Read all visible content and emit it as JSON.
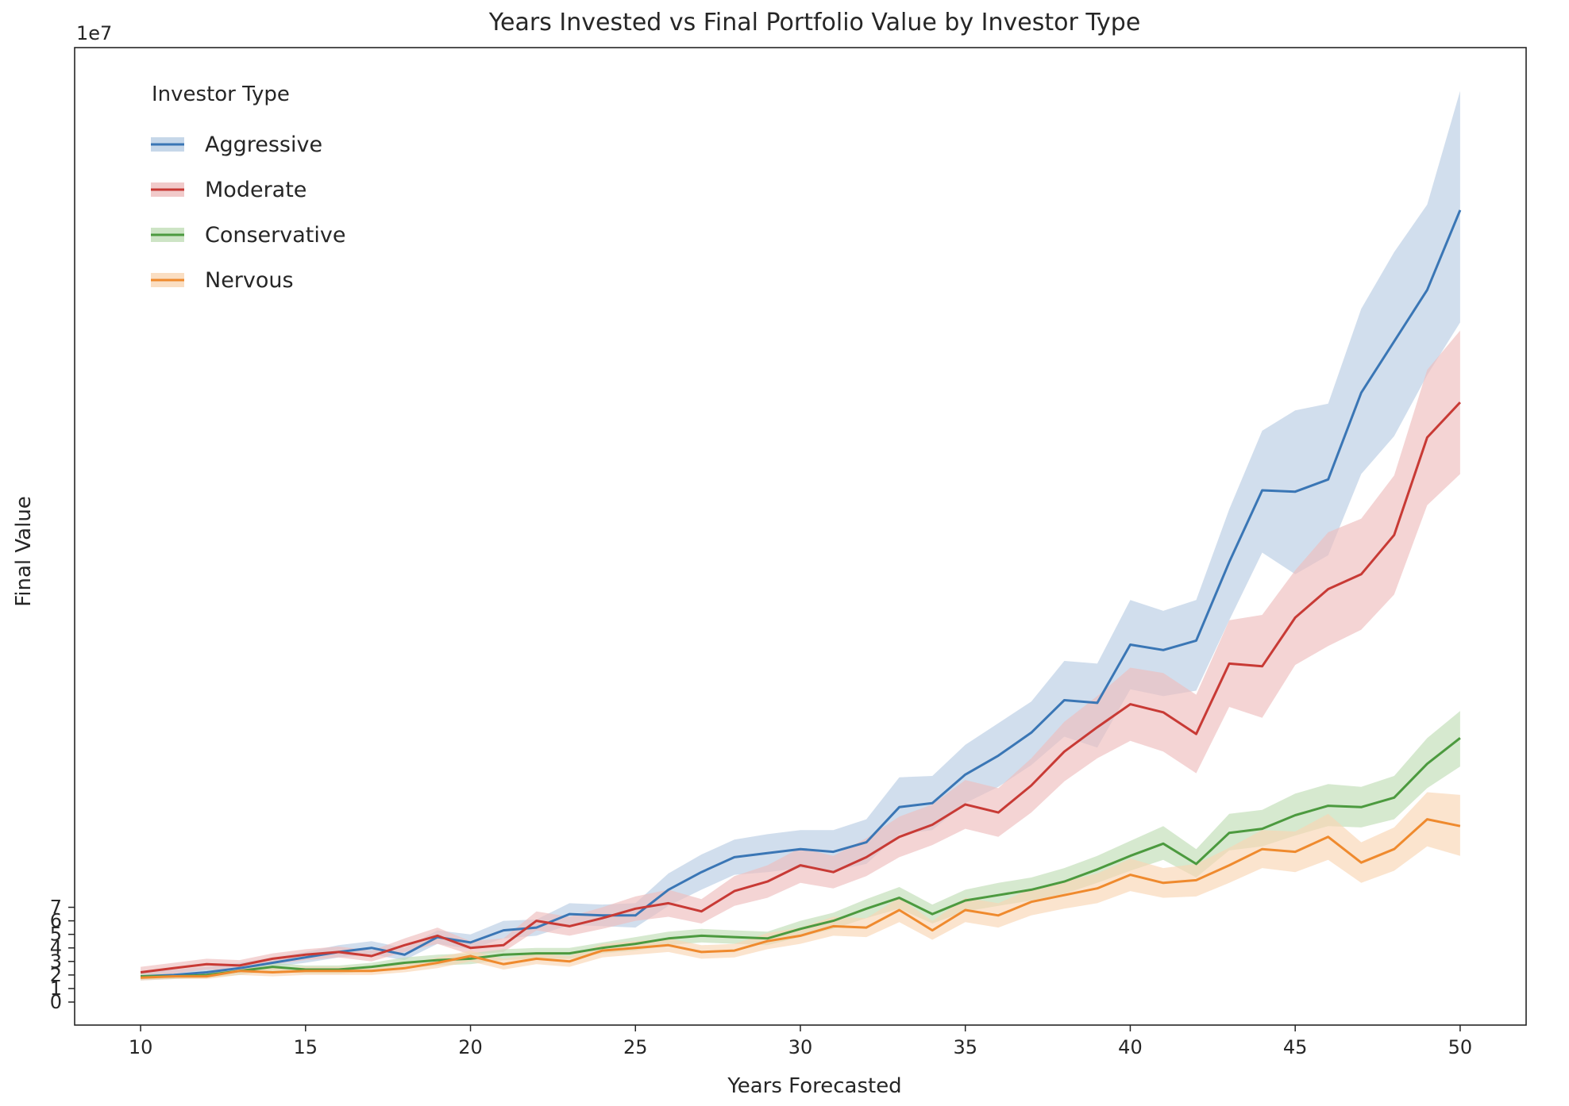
{
  "chart_data": {
    "type": "line",
    "title": "Years Invested vs Final Portfolio Value by Investor Type",
    "xlabel": "Years Forecasted",
    "ylabel": "Final Value",
    "y_offset_label": "1e7",
    "y_multiplier": 10000000,
    "xlim": [
      8,
      52
    ],
    "ylim": [
      -1.7,
      70.5
    ],
    "x_ticks": [
      10,
      15,
      20,
      25,
      30,
      35,
      40,
      45,
      50
    ],
    "y_ticks": [
      0,
      1,
      2,
      3,
      4,
      5,
      6,
      7
    ],
    "grid": false,
    "legend": {
      "title": "Investor Type",
      "placement": "top-left"
    },
    "x": [
      10,
      11,
      12,
      13,
      14,
      15,
      16,
      17,
      18,
      19,
      20,
      21,
      22,
      23,
      24,
      25,
      26,
      27,
      28,
      29,
      30,
      31,
      32,
      33,
      34,
      35,
      36,
      37,
      38,
      39,
      40,
      41,
      42,
      43,
      44,
      45,
      46,
      47,
      48,
      49,
      50
    ],
    "series": [
      {
        "name": "Aggressive",
        "color": "#3a76b5",
        "band_color": "#b8cde4",
        "values": [
          1.9,
          2.0,
          2.2,
          2.5,
          2.9,
          3.3,
          3.7,
          4.0,
          3.5,
          4.8,
          4.4,
          5.3,
          5.5,
          6.5,
          6.4,
          6.4,
          8.3,
          9.6,
          10.7,
          11.0,
          11.3,
          11.1,
          11.8,
          14.4,
          14.7,
          16.8,
          18.2,
          19.9,
          22.3,
          22.1,
          26.4,
          26.0,
          26.7,
          32.5,
          37.8,
          37.7,
          38.6,
          45.0,
          48.8,
          52.6,
          58.5
        ],
        "lower": [
          1.6,
          1.7,
          1.9,
          2.2,
          2.6,
          2.9,
          3.3,
          3.5,
          3.1,
          4.3,
          3.9,
          4.7,
          4.9,
          5.7,
          5.6,
          5.5,
          7.1,
          8.3,
          9.4,
          9.6,
          9.9,
          9.7,
          10.2,
          12.4,
          12.7,
          14.7,
          15.9,
          17.5,
          19.6,
          18.8,
          23.1,
          22.6,
          23.0,
          28.2,
          33.2,
          31.6,
          33.0,
          39.0,
          41.8,
          46.3,
          50.2
        ],
        "upper": [
          2.3,
          2.4,
          2.6,
          2.9,
          3.3,
          3.7,
          4.2,
          4.5,
          4.0,
          5.3,
          5.0,
          6.0,
          6.1,
          7.3,
          7.2,
          7.3,
          9.5,
          10.9,
          12.0,
          12.4,
          12.7,
          12.7,
          13.5,
          16.6,
          16.7,
          19.0,
          20.6,
          22.2,
          25.2,
          25.0,
          29.7,
          28.9,
          29.7,
          36.4,
          42.2,
          43.7,
          44.2,
          51.2,
          55.4,
          58.9,
          67.3
        ]
      },
      {
        "name": "Moderate",
        "color": "#c83a35",
        "band_color": "#eebdbd",
        "values": [
          2.2,
          2.5,
          2.8,
          2.7,
          3.2,
          3.5,
          3.7,
          3.4,
          4.2,
          4.9,
          4.0,
          4.2,
          6.0,
          5.6,
          6.2,
          6.9,
          7.3,
          6.7,
          8.2,
          8.9,
          10.1,
          9.6,
          10.7,
          12.2,
          13.1,
          14.6,
          14.0,
          16.0,
          18.5,
          20.3,
          22.0,
          21.4,
          19.8,
          25.0,
          24.8,
          28.4,
          30.5,
          31.6,
          34.5,
          41.7,
          44.3
        ],
        "lower": [
          1.8,
          2.1,
          2.4,
          2.3,
          2.8,
          3.1,
          3.3,
          3.0,
          3.7,
          4.3,
          3.5,
          3.7,
          5.3,
          4.9,
          5.4,
          6.0,
          6.3,
          5.8,
          7.1,
          7.7,
          8.8,
          8.4,
          9.3,
          10.7,
          11.6,
          12.8,
          12.2,
          14.0,
          16.3,
          18.0,
          19.3,
          18.5,
          16.9,
          21.8,
          21.0,
          24.9,
          26.3,
          27.5,
          30.1,
          36.7,
          39.0
        ],
        "upper": [
          2.6,
          2.9,
          3.2,
          3.1,
          3.6,
          3.9,
          4.1,
          3.8,
          4.7,
          5.5,
          4.5,
          4.7,
          6.7,
          6.3,
          7.0,
          7.8,
          8.3,
          7.6,
          9.3,
          10.1,
          11.4,
          10.8,
          12.1,
          13.7,
          14.6,
          16.4,
          15.8,
          18.0,
          20.7,
          22.6,
          24.7,
          24.3,
          22.7,
          28.2,
          28.6,
          31.9,
          34.7,
          35.7,
          38.9,
          46.7,
          49.6
        ]
      },
      {
        "name": "Conservative",
        "color": "#4c9a3f",
        "band_color": "#c0ddb6",
        "values": [
          1.9,
          1.9,
          2.0,
          2.3,
          2.6,
          2.4,
          2.4,
          2.6,
          2.9,
          3.1,
          3.2,
          3.5,
          3.6,
          3.6,
          4.0,
          4.3,
          4.7,
          4.9,
          4.8,
          4.7,
          5.4,
          6.0,
          6.9,
          7.7,
          6.5,
          7.5,
          7.9,
          8.3,
          8.9,
          9.8,
          10.8,
          11.7,
          10.2,
          12.5,
          12.8,
          13.8,
          14.5,
          14.4,
          15.1,
          17.6,
          19.5
        ],
        "lower": [
          1.7,
          1.7,
          1.8,
          2.0,
          2.3,
          2.1,
          2.1,
          2.3,
          2.5,
          2.7,
          2.8,
          3.1,
          3.2,
          3.2,
          3.6,
          3.8,
          4.2,
          4.4,
          4.3,
          4.2,
          4.8,
          5.4,
          6.2,
          6.9,
          5.8,
          6.7,
          7.1,
          7.5,
          8.0,
          8.8,
          9.7,
          10.5,
          9.2,
          11.2,
          11.5,
          12.3,
          13.0,
          12.9,
          13.5,
          15.8,
          17.4
        ],
        "upper": [
          2.1,
          2.1,
          2.2,
          2.6,
          2.9,
          2.7,
          2.7,
          2.9,
          3.3,
          3.5,
          3.6,
          3.9,
          4.0,
          4.0,
          4.4,
          4.8,
          5.2,
          5.4,
          5.3,
          5.2,
          6.0,
          6.6,
          7.6,
          8.5,
          7.2,
          8.3,
          8.8,
          9.2,
          9.9,
          10.8,
          11.9,
          13.0,
          11.3,
          13.9,
          14.2,
          15.4,
          16.1,
          15.9,
          16.7,
          19.5,
          21.5
        ]
      },
      {
        "name": "Nervous",
        "color": "#ef8a2e",
        "band_color": "#f9d6b3",
        "values": [
          1.8,
          1.9,
          1.9,
          2.3,
          2.2,
          2.3,
          2.3,
          2.3,
          2.5,
          2.9,
          3.4,
          2.8,
          3.2,
          3.0,
          3.8,
          4.0,
          4.2,
          3.7,
          3.8,
          4.5,
          4.9,
          5.6,
          5.5,
          6.8,
          5.3,
          6.8,
          6.4,
          7.4,
          7.9,
          8.4,
          9.4,
          8.8,
          9.0,
          10.1,
          11.3,
          11.1,
          12.2,
          10.3,
          11.3,
          13.5,
          13.0
        ],
        "lower": [
          1.6,
          1.7,
          1.7,
          2.0,
          1.9,
          2.0,
          2.0,
          2.0,
          2.2,
          2.5,
          3.0,
          2.4,
          2.8,
          2.6,
          3.3,
          3.5,
          3.7,
          3.2,
          3.3,
          3.9,
          4.3,
          4.9,
          4.8,
          5.9,
          4.6,
          5.9,
          5.5,
          6.4,
          6.9,
          7.3,
          8.2,
          7.7,
          7.8,
          8.8,
          9.9,
          9.6,
          10.5,
          8.8,
          9.7,
          11.5,
          10.8
        ],
        "upper": [
          2.0,
          2.1,
          2.1,
          2.6,
          2.5,
          2.6,
          2.6,
          2.6,
          2.8,
          3.3,
          3.8,
          3.2,
          3.6,
          3.4,
          4.3,
          4.5,
          4.7,
          4.2,
          4.3,
          5.1,
          5.5,
          6.3,
          6.2,
          7.7,
          6.0,
          7.7,
          7.3,
          8.4,
          8.9,
          9.5,
          10.6,
          9.9,
          10.2,
          11.4,
          12.7,
          12.6,
          13.9,
          11.8,
          12.9,
          15.5,
          15.3
        ]
      }
    ]
  }
}
